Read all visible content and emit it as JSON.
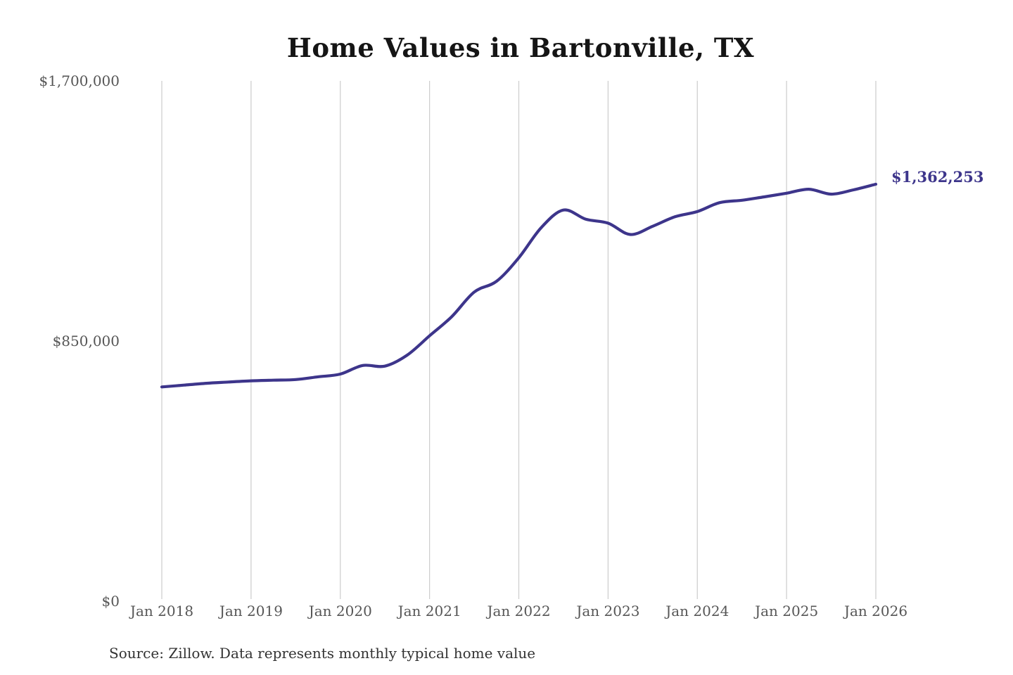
{
  "colors": {
    "line": "#3d358b",
    "grid": "#cccccc",
    "axis_text": "#565656",
    "title_text": "#151515",
    "source_text": "#333333",
    "background": "#ffffff"
  },
  "chart_data": {
    "type": "line",
    "title": "Home Values in Bartonville, TX",
    "xlabel": "",
    "ylabel": "",
    "ylim": [
      0,
      1700000
    ],
    "grid": "vertical-only",
    "legend": "none",
    "x_ticks": [
      "Jan 2018",
      "Jan 2019",
      "Jan 2020",
      "Jan 2021",
      "Jan 2022",
      "Jan 2023",
      "Jan 2024",
      "Jan 2025",
      "Jan 2026"
    ],
    "y_ticks": [
      {
        "label": "$0",
        "value": 0
      },
      {
        "label": "$850,000",
        "value": 850000
      },
      {
        "label": "$1,700,000",
        "value": 1700000
      }
    ],
    "annotation": {
      "text": "$1,362,253",
      "date": "2026-01",
      "value": 1362253
    },
    "source": "Source: Zillow. Data represents monthly typical home value",
    "series": [
      {
        "name": "Typical home value",
        "points": [
          {
            "date": "2018-01",
            "value": 700000
          },
          {
            "date": "2018-04",
            "value": 706000
          },
          {
            "date": "2018-07",
            "value": 712000
          },
          {
            "date": "2018-10",
            "value": 716000
          },
          {
            "date": "2019-01",
            "value": 720000
          },
          {
            "date": "2019-04",
            "value": 722000
          },
          {
            "date": "2019-07",
            "value": 724000
          },
          {
            "date": "2019-10",
            "value": 733000
          },
          {
            "date": "2020-01",
            "value": 742000
          },
          {
            "date": "2020-04",
            "value": 770000
          },
          {
            "date": "2020-07",
            "value": 768000
          },
          {
            "date": "2020-10",
            "value": 804000
          },
          {
            "date": "2021-01",
            "value": 867000
          },
          {
            "date": "2021-04",
            "value": 930000
          },
          {
            "date": "2021-07",
            "value": 1010000
          },
          {
            "date": "2021-10",
            "value": 1045000
          },
          {
            "date": "2022-01",
            "value": 1122000
          },
          {
            "date": "2022-04",
            "value": 1220000
          },
          {
            "date": "2022-07",
            "value": 1278000
          },
          {
            "date": "2022-10",
            "value": 1248000
          },
          {
            "date": "2023-01",
            "value": 1235000
          },
          {
            "date": "2023-04",
            "value": 1198000
          },
          {
            "date": "2023-07",
            "value": 1225000
          },
          {
            "date": "2023-10",
            "value": 1256000
          },
          {
            "date": "2024-01",
            "value": 1273000
          },
          {
            "date": "2024-04",
            "value": 1302000
          },
          {
            "date": "2024-07",
            "value": 1310000
          },
          {
            "date": "2024-10",
            "value": 1321000
          },
          {
            "date": "2025-01",
            "value": 1333000
          },
          {
            "date": "2025-04",
            "value": 1346000
          },
          {
            "date": "2025-07",
            "value": 1330000
          },
          {
            "date": "2025-10",
            "value": 1344000
          },
          {
            "date": "2026-01",
            "value": 1362253
          }
        ]
      }
    ]
  }
}
